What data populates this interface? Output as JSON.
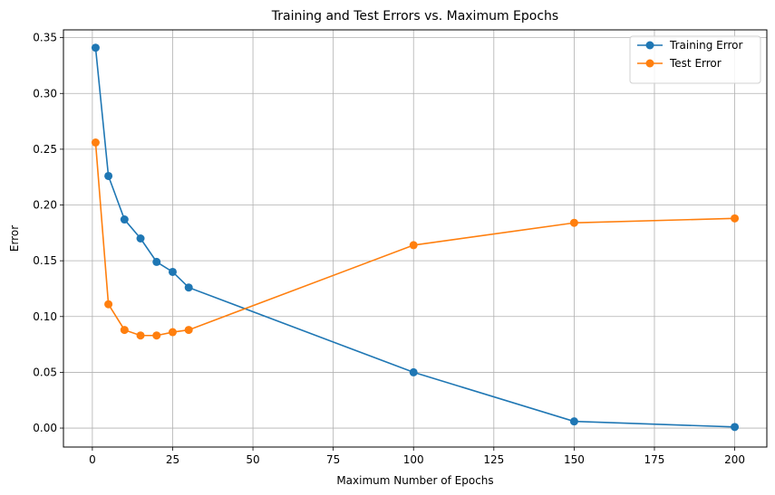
{
  "chart_data": {
    "type": "line",
    "title": "Training and Test Errors vs. Maximum Epochs",
    "xlabel": "Maximum Number of Epochs",
    "ylabel": "Error",
    "xlim": [
      -9,
      210
    ],
    "ylim": [
      -0.017,
      0.357
    ],
    "xticks": [
      0,
      25,
      50,
      75,
      100,
      125,
      150,
      175,
      200
    ],
    "yticks": [
      0.0,
      0.05,
      0.1,
      0.15,
      0.2,
      0.25,
      0.3,
      0.35
    ],
    "ytick_format": 2,
    "grid": true,
    "legend_position": "top-right",
    "x": [
      1,
      5,
      10,
      15,
      20,
      25,
      30,
      100,
      150,
      200
    ],
    "series": [
      {
        "name": "Training Error",
        "color": "#1f77b4",
        "values": [
          0.341,
          0.226,
          0.187,
          0.17,
          0.149,
          0.14,
          0.126,
          0.05,
          0.006,
          0.001
        ]
      },
      {
        "name": "Test Error",
        "color": "#ff7f0e",
        "values": [
          0.256,
          0.111,
          0.088,
          0.083,
          0.083,
          0.086,
          0.088,
          0.164,
          0.184,
          0.188
        ]
      }
    ]
  }
}
